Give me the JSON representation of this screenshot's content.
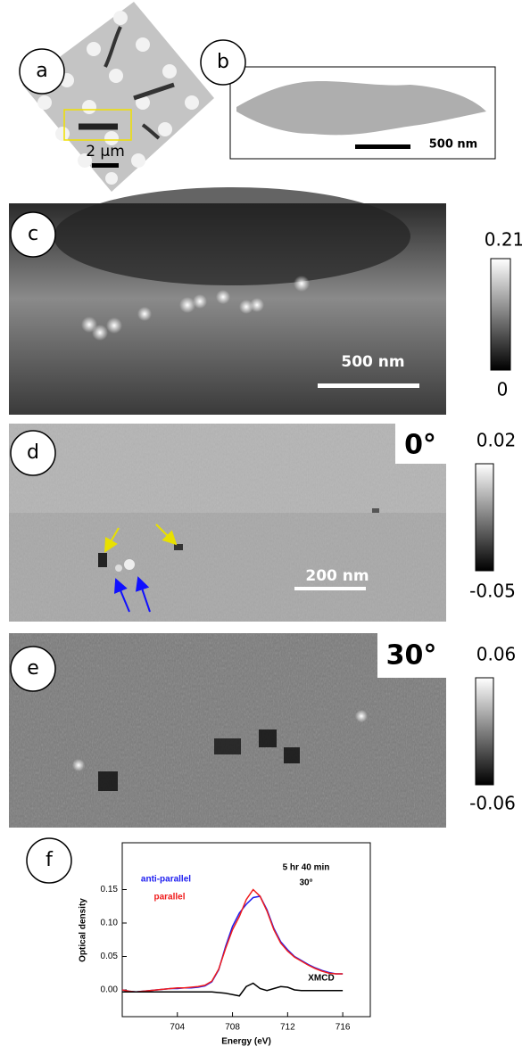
{
  "panels": {
    "a": {
      "label": "a",
      "scale_bar": "2 μm"
    },
    "b": {
      "label": "b",
      "scale_bar": "500 nm"
    },
    "c": {
      "label": "c",
      "scale_bar": "500 nm",
      "colorbar": {
        "max": "0.21",
        "min": "0"
      }
    },
    "d": {
      "label": "d",
      "angle": "0°",
      "scale_bar": "200 nm",
      "colorbar": {
        "max": "0.02",
        "min": "-0.05"
      }
    },
    "e": {
      "label": "e",
      "angle": "30°",
      "colorbar": {
        "max": "0.06",
        "min": "-0.06"
      }
    },
    "f": {
      "label": "f"
    }
  },
  "chart_data": {
    "type": "line",
    "xlabel": "Energy (eV)",
    "ylabel": "Optical density",
    "annotations": [
      "5 hr  40 min",
      "30°"
    ],
    "x": [
      700,
      700.5,
      701,
      701.5,
      702,
      702.5,
      703,
      703.5,
      704,
      704.5,
      705,
      705.5,
      706,
      706.5,
      707,
      707.5,
      708,
      708.5,
      709,
      709.5,
      710,
      710.5,
      711,
      711.5,
      712,
      712.5,
      713,
      713.5,
      714,
      714.5,
      715,
      715.5,
      716
    ],
    "series": [
      {
        "name": "anti-parallel",
        "color": "#1c1cf0",
        "values": [
          0,
          -0.002,
          -0.003,
          -0.002,
          -0.001,
          0,
          0.001,
          0.002,
          0.002,
          0.003,
          0.003,
          0.004,
          0.006,
          0.012,
          0.03,
          0.065,
          0.095,
          0.115,
          0.128,
          0.138,
          0.14,
          0.12,
          0.092,
          0.072,
          0.06,
          0.05,
          0.044,
          0.038,
          0.033,
          0.029,
          0.026,
          0.024,
          0.024
        ]
      },
      {
        "name": "parallel",
        "color": "#f01c1c",
        "values": [
          0,
          -0.002,
          -0.003,
          -0.002,
          -0.001,
          0,
          0.001,
          0.002,
          0.003,
          0.003,
          0.004,
          0.005,
          0.007,
          0.013,
          0.031,
          0.062,
          0.09,
          0.11,
          0.135,
          0.15,
          0.14,
          0.118,
          0.09,
          0.07,
          0.058,
          0.049,
          0.043,
          0.037,
          0.032,
          0.028,
          0.025,
          0.024,
          0.024
        ]
      },
      {
        "name": "XMCD",
        "color": "#000000",
        "values": [
          -0.003,
          -0.003,
          -0.003,
          -0.003,
          -0.003,
          -0.003,
          -0.003,
          -0.003,
          -0.003,
          -0.003,
          -0.003,
          -0.003,
          -0.003,
          -0.003,
          -0.004,
          -0.005,
          -0.007,
          -0.009,
          0.005,
          0.01,
          0.002,
          -0.001,
          0.002,
          0.005,
          0.004,
          0,
          -0.001,
          -0.001,
          -0.001,
          -0.001,
          -0.001,
          -0.001,
          -0.001
        ]
      }
    ],
    "xlim": [
      700,
      718
    ],
    "ylim": [
      -0.04,
      0.22
    ],
    "xticks": [
      704,
      708,
      712,
      716
    ],
    "yticks": [
      {
        "value": 0,
        "label": "0.00"
      },
      {
        "value": 0.05,
        "label": "0.05"
      },
      {
        "value": 0.1,
        "label": "0.10"
      },
      {
        "value": 0.15,
        "label": "0.15"
      }
    ]
  }
}
